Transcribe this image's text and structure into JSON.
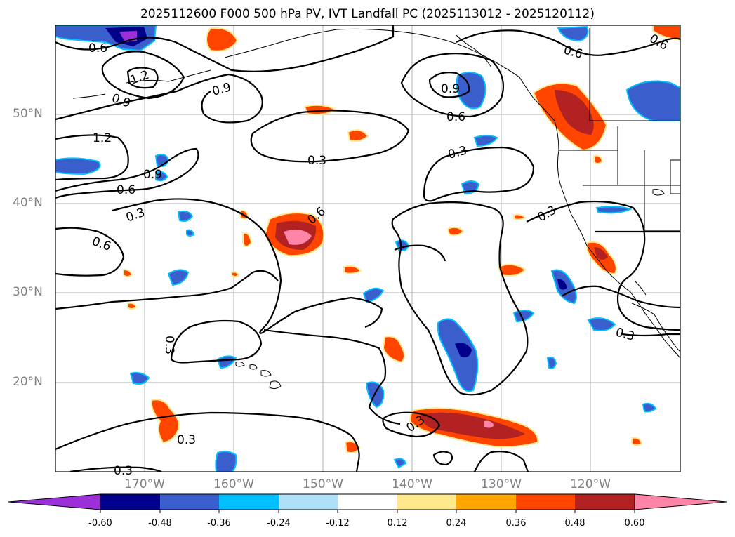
{
  "title": "2025112600 F000 500 hPa PV, IVT Landfall PC (2025113012 - 2025120112)",
  "lat_labels": [
    "50°N",
    "40°N",
    "30°N",
    "20°N"
  ],
  "lon_labels": [
    "170°W",
    "160°W",
    "150°W",
    "140°W",
    "130°W",
    "120°W"
  ],
  "contour_labels": [
    "0.6",
    "1.2",
    "0.9",
    "0.9",
    "1.2",
    "0.9",
    "0.6",
    "0.3",
    "0.6",
    "0.3",
    "0.6",
    "0.3",
    "0.9",
    "0.6",
    "0.3",
    "0.3",
    "0.3",
    "0.6",
    "0.3",
    "0.3"
  ],
  "colorbar": {
    "tick_labels": [
      "-0.60",
      "-0.48",
      "-0.36",
      "-0.24",
      "-0.12",
      "0.12",
      "0.24",
      "0.36",
      "0.48",
      "0.60"
    ],
    "colors": [
      "#9b30d9",
      "#00008b",
      "#3a5fcd",
      "#00bfff",
      "#b0e0f8",
      "#ffffff",
      "#ffe98c",
      "#ffa500",
      "#ff4500",
      "#b22222",
      "#ff85a8"
    ]
  }
}
